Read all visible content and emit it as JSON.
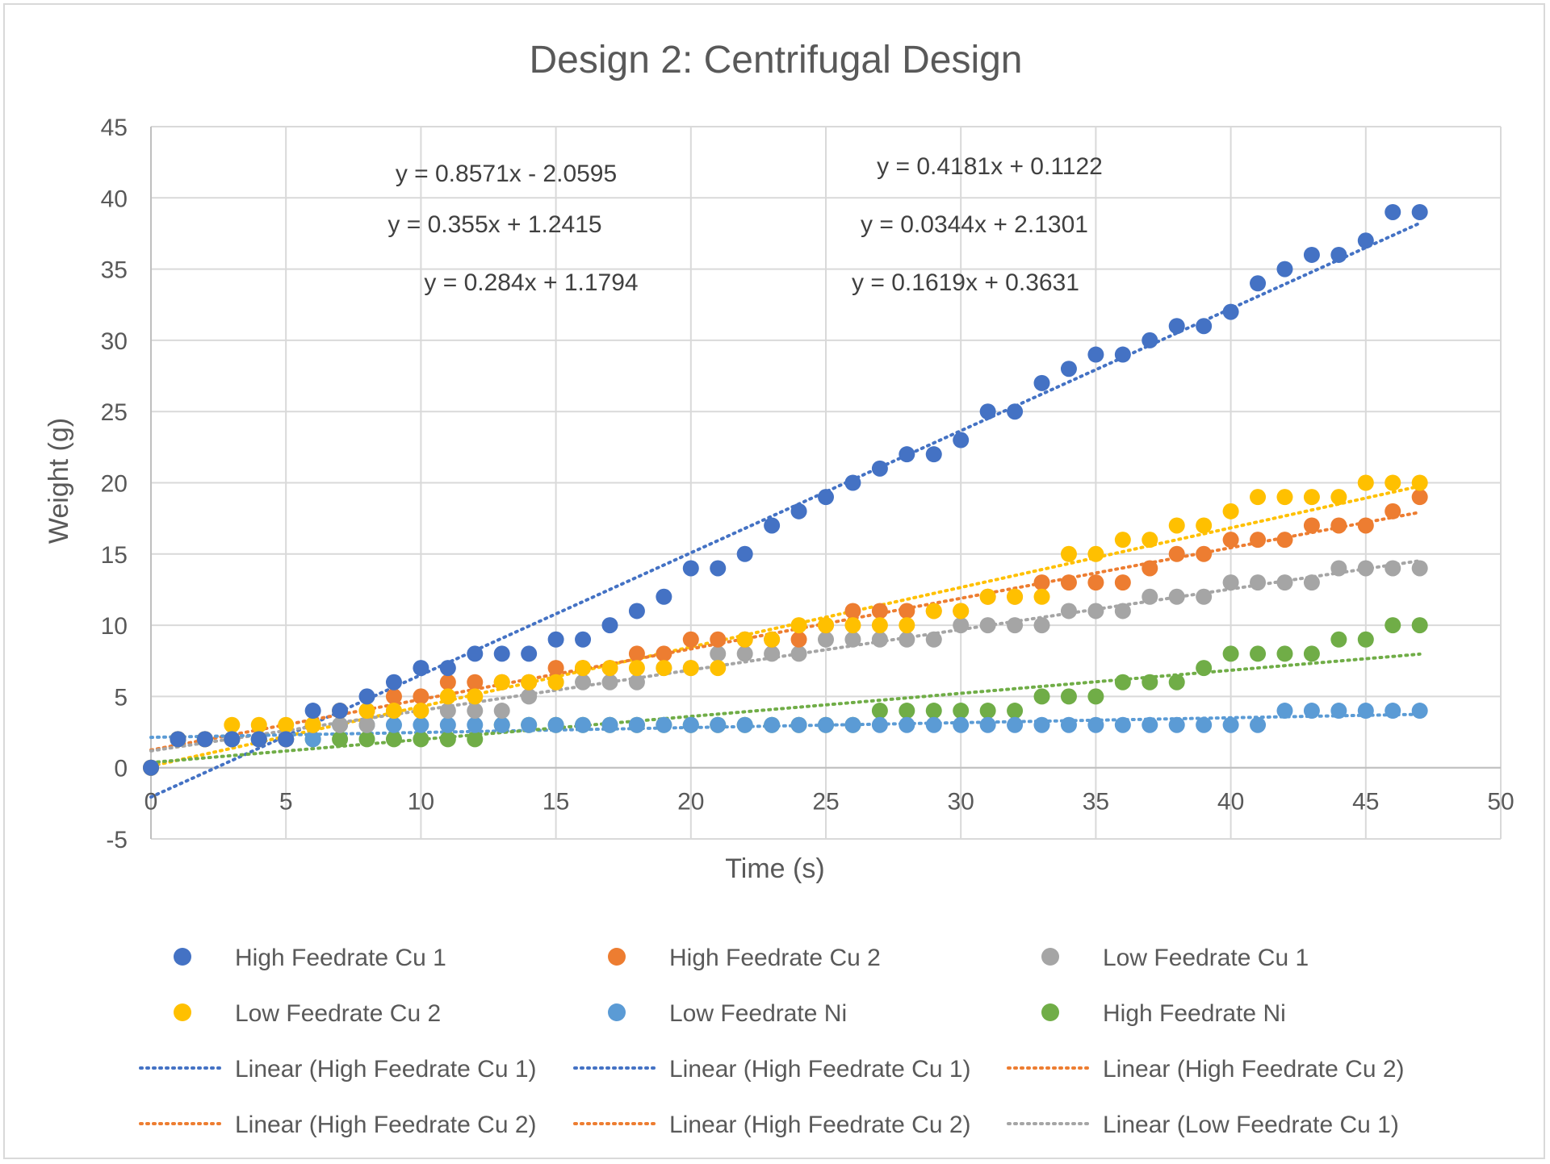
{
  "chart_data": {
    "type": "scatter",
    "title": "Design 2: Centrifugal Design",
    "xlabel": "Time (s)",
    "ylabel": "Weight (g)",
    "xlim": [
      0,
      50
    ],
    "ylim": [
      -5,
      45
    ],
    "x_ticks": [
      0,
      5,
      10,
      15,
      20,
      25,
      30,
      35,
      40,
      45,
      50
    ],
    "y_ticks": [
      -5,
      0,
      5,
      10,
      15,
      20,
      25,
      30,
      35,
      40,
      45
    ],
    "grid": true,
    "legend_position": "bottom",
    "series": [
      {
        "name": "High Feedrate Cu 1",
        "color": "#4472C4",
        "x": [
          0,
          1,
          2,
          3,
          4,
          5,
          6,
          7,
          8,
          9,
          10,
          11,
          12,
          13,
          14,
          15,
          16,
          17,
          18,
          19,
          20,
          21,
          22,
          23,
          24,
          25,
          26,
          27,
          28,
          29,
          30,
          31,
          32,
          33,
          34,
          35,
          36,
          37,
          38,
          39,
          40,
          41,
          42,
          43,
          44,
          45,
          46,
          47
        ],
        "y": [
          0,
          2,
          2,
          2,
          2,
          2,
          4,
          4,
          5,
          6,
          7,
          7,
          8,
          8,
          8,
          9,
          9,
          10,
          11,
          12,
          14,
          14,
          15,
          17,
          18,
          19,
          20,
          21,
          22,
          22,
          23,
          25,
          25,
          27,
          28,
          29,
          29,
          30,
          31,
          31,
          32,
          34,
          35,
          36,
          36,
          37,
          39,
          39
        ]
      },
      {
        "name": "High Feedrate Cu 2",
        "color": "#ED7D31",
        "x": [
          0,
          1,
          2,
          3,
          4,
          5,
          6,
          7,
          8,
          9,
          10,
          11,
          12,
          13,
          14,
          15,
          16,
          17,
          18,
          19,
          20,
          21,
          22,
          23,
          24,
          25,
          26,
          27,
          28,
          29,
          30,
          31,
          32,
          33,
          34,
          35,
          36,
          37,
          38,
          39,
          40,
          41,
          42,
          43,
          44,
          45,
          46,
          47
        ],
        "y": [
          0,
          2,
          2,
          2,
          2,
          2,
          3,
          4,
          4,
          5,
          5,
          6,
          6,
          6,
          6,
          7,
          7,
          7,
          8,
          8,
          9,
          9,
          9,
          9,
          9,
          10,
          11,
          11,
          11,
          11,
          11,
          12,
          12,
          13,
          13,
          13,
          13,
          14,
          15,
          15,
          16,
          16,
          16,
          17,
          17,
          17,
          18,
          19
        ]
      },
      {
        "name": "Low Feedrate Cu 1",
        "color": "#A5A5A5",
        "x": [
          0,
          1,
          2,
          3,
          4,
          5,
          6,
          7,
          8,
          9,
          10,
          11,
          12,
          13,
          14,
          15,
          16,
          17,
          18,
          19,
          20,
          21,
          22,
          23,
          24,
          25,
          26,
          27,
          28,
          29,
          30,
          31,
          32,
          33,
          34,
          35,
          36,
          37,
          38,
          39,
          40,
          41,
          42,
          43,
          44,
          45,
          46,
          47
        ],
        "y": [
          0,
          2,
          2,
          2,
          2,
          2,
          3,
          3,
          3,
          4,
          4,
          4,
          4,
          4,
          5,
          6,
          6,
          6,
          6,
          7,
          7,
          8,
          8,
          8,
          8,
          9,
          9,
          9,
          9,
          9,
          10,
          10,
          10,
          10,
          11,
          11,
          11,
          12,
          12,
          12,
          13,
          13,
          13,
          13,
          14,
          14,
          14,
          14
        ]
      },
      {
        "name": "Low Feedrate Cu 2",
        "color": "#FFC000",
        "x": [
          0,
          1,
          2,
          3,
          4,
          5,
          6,
          7,
          8,
          9,
          10,
          11,
          12,
          13,
          14,
          15,
          16,
          17,
          18,
          19,
          20,
          21,
          22,
          23,
          24,
          25,
          26,
          27,
          28,
          29,
          30,
          31,
          32,
          33,
          34,
          35,
          36,
          37,
          38,
          39,
          40,
          41,
          42,
          43,
          44,
          45,
          46,
          47
        ],
        "y": [
          0,
          2,
          2,
          3,
          3,
          3,
          3,
          4,
          4,
          4,
          4,
          5,
          5,
          6,
          6,
          6,
          7,
          7,
          7,
          7,
          7,
          7,
          9,
          9,
          10,
          10,
          10,
          10,
          10,
          11,
          11,
          12,
          12,
          12,
          15,
          15,
          16,
          16,
          17,
          17,
          18,
          19,
          19,
          19,
          19,
          20,
          20,
          20
        ]
      },
      {
        "name": "Low Feedrate Ni",
        "color": "#5B9BD5",
        "x": [
          0,
          1,
          2,
          3,
          4,
          5,
          6,
          7,
          8,
          9,
          10,
          11,
          12,
          13,
          14,
          15,
          16,
          17,
          18,
          19,
          20,
          21,
          22,
          23,
          24,
          25,
          26,
          27,
          28,
          29,
          30,
          31,
          32,
          33,
          34,
          35,
          36,
          37,
          38,
          39,
          40,
          41,
          42,
          43,
          44,
          45,
          46,
          47
        ],
        "y": [
          0,
          2,
          2,
          2,
          2,
          2,
          2,
          3,
          3,
          3,
          3,
          3,
          3,
          3,
          3,
          3,
          3,
          3,
          3,
          3,
          3,
          3,
          3,
          3,
          3,
          3,
          3,
          3,
          3,
          3,
          3,
          3,
          3,
          3,
          3,
          3,
          3,
          3,
          3,
          3,
          3,
          3,
          4,
          4,
          4,
          4,
          4,
          4
        ]
      },
      {
        "name": "High Feedrate Ni",
        "color": "#70AD47",
        "x": [
          0,
          1,
          2,
          3,
          4,
          5,
          6,
          7,
          8,
          9,
          10,
          11,
          12,
          13,
          14,
          15,
          16,
          17,
          18,
          19,
          20,
          21,
          22,
          23,
          24,
          25,
          26,
          27,
          28,
          29,
          30,
          31,
          32,
          33,
          34,
          35,
          36,
          37,
          38,
          39,
          40,
          41,
          42,
          43,
          44,
          45,
          46,
          47
        ],
        "y": [
          0,
          2,
          2,
          2,
          2,
          2,
          2,
          2,
          2,
          2,
          2,
          2,
          2,
          3,
          3,
          3,
          3,
          3,
          3,
          3,
          3,
          3,
          3,
          3,
          3,
          3,
          3,
          4,
          4,
          4,
          4,
          4,
          4,
          5,
          5,
          5,
          6,
          6,
          6,
          7,
          8,
          8,
          8,
          8,
          9,
          9,
          10,
          10
        ]
      }
    ],
    "trendlines": [
      {
        "of": "High Feedrate Cu 1",
        "color": "#4472C4",
        "slope": 0.8571,
        "intercept": -2.0595
      },
      {
        "of": "Low Feedrate Cu 2",
        "color": "#FFC000",
        "slope": 0.4181,
        "intercept": 0.1122
      },
      {
        "of": "High Feedrate Cu 2",
        "color": "#ED7D31",
        "slope": 0.355,
        "intercept": 1.2415
      },
      {
        "of": "Low Feedrate Cu 1",
        "color": "#A5A5A5",
        "slope": 0.284,
        "intercept": 1.1794
      },
      {
        "of": "Low Feedrate Ni",
        "color": "#5B9BD5",
        "slope": 0.0344,
        "intercept": 2.1301
      },
      {
        "of": "High Feedrate Ni",
        "color": "#70AD47",
        "slope": 0.1619,
        "intercept": 0.3631
      }
    ],
    "equations": [
      "y = 0.8571x - 2.0595",
      "y = 0.355x + 1.2415",
      "y = 0.284x + 1.1794",
      "y = 0.4181x + 0.1122",
      "y = 0.0344x + 2.1301",
      "y = 0.1619x + 0.3631"
    ],
    "legend": [
      {
        "label": "High Feedrate Cu 1",
        "kind": "marker",
        "color": "#4472C4"
      },
      {
        "label": "High Feedrate Cu 2",
        "kind": "marker",
        "color": "#ED7D31"
      },
      {
        "label": "Low Feedrate Cu 1",
        "kind": "marker",
        "color": "#A5A5A5"
      },
      {
        "label": "Low Feedrate Cu 2",
        "kind": "marker",
        "color": "#FFC000"
      },
      {
        "label": "Low Feedrate Ni",
        "kind": "marker",
        "color": "#5B9BD5"
      },
      {
        "label": "High Feedrate Ni",
        "kind": "marker",
        "color": "#70AD47"
      },
      {
        "label": "Linear (High Feedrate Cu 1)",
        "kind": "line",
        "color": "#4472C4"
      },
      {
        "label": "Linear (High Feedrate Cu 1)",
        "kind": "line",
        "color": "#4472C4"
      },
      {
        "label": "Linear (High Feedrate Cu 2)",
        "kind": "line",
        "color": "#ED7D31"
      },
      {
        "label": "Linear (High Feedrate Cu 2)",
        "kind": "line",
        "color": "#ED7D31"
      },
      {
        "label": "Linear (High Feedrate Cu 2)",
        "kind": "line",
        "color": "#ED7D31"
      },
      {
        "label": "Linear (Low Feedrate Cu 1)",
        "kind": "line",
        "color": "#A5A5A5"
      }
    ]
  }
}
